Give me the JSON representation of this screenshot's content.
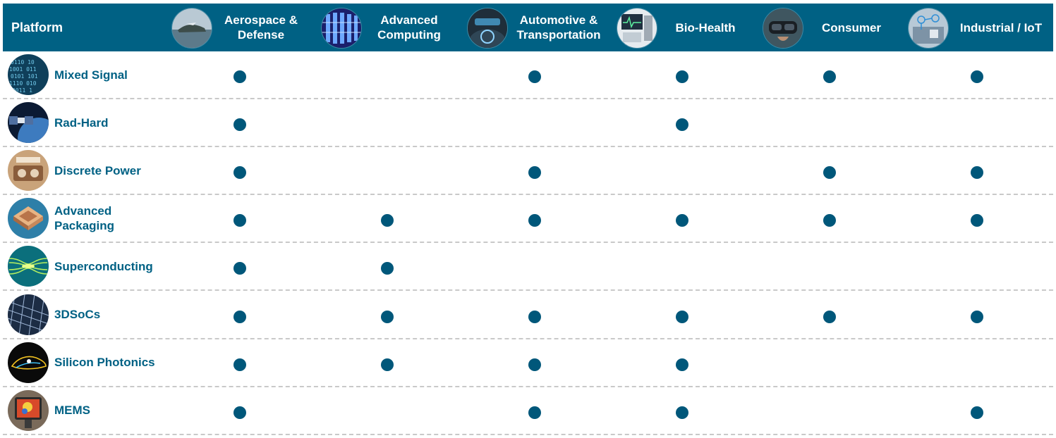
{
  "header": {
    "platform_label": "Platform"
  },
  "columns": [
    {
      "id": "aerospace",
      "label_lines": [
        "Aerospace &",
        "Defense"
      ],
      "icon": "aircraft-over-ocean-icon"
    },
    {
      "id": "computing",
      "label_lines": [
        "Advanced",
        "Computing"
      ],
      "icon": "server-datacenter-icon"
    },
    {
      "id": "automotive",
      "label_lines": [
        "Automotive &",
        "Transportation"
      ],
      "icon": "car-dashboard-icon"
    },
    {
      "id": "biohealth",
      "label_lines": [
        "Bio-Health"
      ],
      "icon": "medical-monitor-icon"
    },
    {
      "id": "consumer",
      "label_lines": [
        "Consumer"
      ],
      "icon": "vr-headset-icon"
    },
    {
      "id": "industrial",
      "label_lines": [
        "Industrial / IoT"
      ],
      "icon": "connected-factory-icon"
    }
  ],
  "rows": [
    {
      "label_lines": [
        "Mixed Signal"
      ],
      "icon": "binary-code-icon",
      "marks": [
        true,
        false,
        true,
        true,
        true,
        true
      ]
    },
    {
      "label_lines": [
        "Rad-Hard"
      ],
      "icon": "satellite-earth-icon",
      "marks": [
        true,
        false,
        false,
        true,
        false,
        false
      ]
    },
    {
      "label_lines": [
        "Discrete Power"
      ],
      "icon": "power-module-icon",
      "marks": [
        true,
        false,
        true,
        false,
        true,
        true
      ]
    },
    {
      "label_lines": [
        "Advanced",
        "Packaging"
      ],
      "icon": "chip-package-icon",
      "marks": [
        true,
        true,
        true,
        true,
        true,
        true
      ]
    },
    {
      "label_lines": [
        "Superconducting"
      ],
      "icon": "superconducting-field-icon",
      "marks": [
        true,
        true,
        false,
        false,
        false,
        false
      ]
    },
    {
      "label_lines": [
        "3DSoCs"
      ],
      "icon": "3d-lattice-icon",
      "marks": [
        true,
        true,
        true,
        true,
        true,
        true
      ]
    },
    {
      "label_lines": [
        "Silicon Photonics"
      ],
      "icon": "photonic-circuit-icon",
      "marks": [
        true,
        true,
        true,
        true,
        false,
        false
      ]
    },
    {
      "label_lines": [
        "MEMS"
      ],
      "icon": "thermal-sensor-icon",
      "marks": [
        true,
        false,
        true,
        true,
        false,
        true
      ]
    }
  ]
}
